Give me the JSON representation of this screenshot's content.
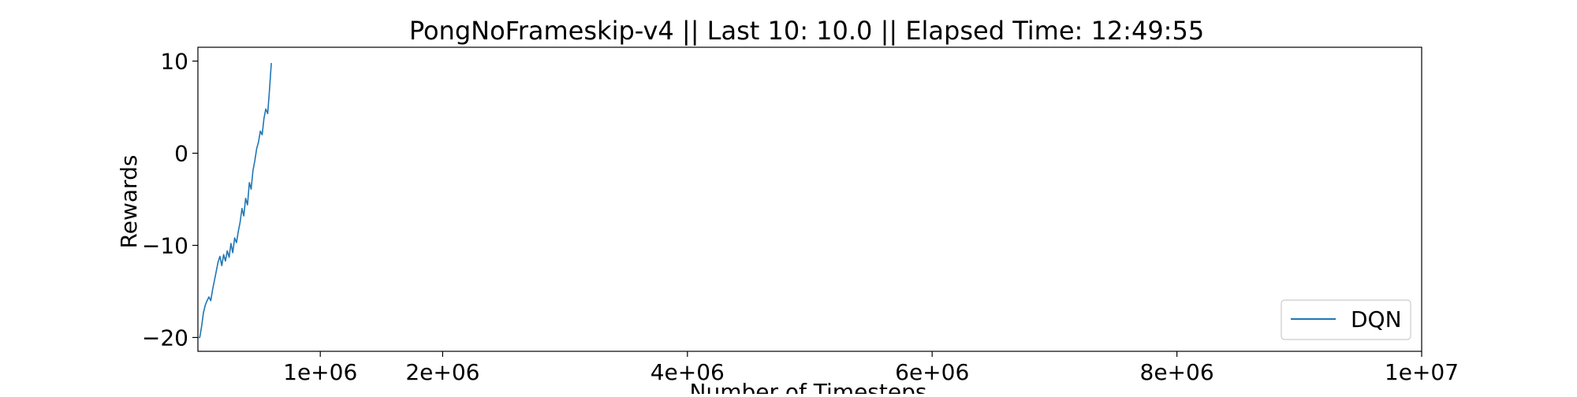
{
  "chart_data": {
    "type": "line",
    "title": "PongNoFrameskip-v4 || Last 10: 10.0 || Elapsed Time: 12:49:55",
    "xlabel": "Number of Timesteps",
    "ylabel": "Rewards",
    "xlim": [
      0,
      10000000
    ],
    "ylim": [
      -21.5,
      11.5
    ],
    "xticks": [
      1000000,
      2000000,
      4000000,
      6000000,
      8000000,
      10000000
    ],
    "xtick_labels": [
      "1e+06",
      "2e+06",
      "4e+06",
      "6e+06",
      "8e+06",
      "1e+07"
    ],
    "yticks": [
      10,
      0,
      -10,
      -20
    ],
    "ytick_labels": [
      "10",
      "0",
      "−10",
      "−20"
    ],
    "grid": false,
    "legend_position": "lower-right",
    "colors": {
      "line": "#1f77b4"
    },
    "series": [
      {
        "name": "DQN",
        "x": [
          0,
          15000,
          30000,
          45000,
          60000,
          75000,
          90000,
          105000,
          120000,
          135000,
          150000,
          165000,
          180000,
          195000,
          210000,
          225000,
          240000,
          255000,
          270000,
          285000,
          300000,
          315000,
          330000,
          345000,
          360000,
          375000,
          390000,
          405000,
          420000,
          435000,
          450000,
          465000,
          480000,
          495000,
          510000,
          525000,
          540000,
          555000,
          570000,
          585000,
          600000
        ],
        "y": [
          -20.0,
          -20.0,
          -18.8,
          -17.3,
          -16.5,
          -16.0,
          -15.6,
          -16.0,
          -14.8,
          -13.8,
          -12.8,
          -11.8,
          -11.2,
          -12.2,
          -11.0,
          -11.7,
          -10.6,
          -11.3,
          -9.8,
          -10.8,
          -9.2,
          -9.7,
          -8.5,
          -7.5,
          -6.0,
          -6.8,
          -4.9,
          -5.6,
          -3.2,
          -3.9,
          -1.9,
          -0.8,
          0.5,
          1.2,
          2.4,
          2.0,
          3.8,
          4.8,
          4.3,
          6.9,
          9.8
        ]
      }
    ]
  }
}
